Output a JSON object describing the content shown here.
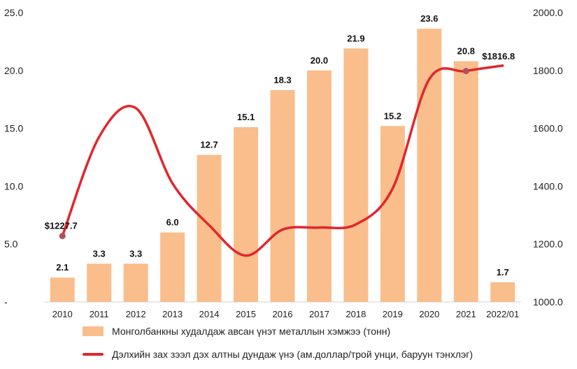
{
  "colors": {
    "bar": "#F9BE8B",
    "line": "#E1262D",
    "marker": "#B0505A"
  },
  "chart_data": {
    "type": "bar",
    "categories": [
      "2010",
      "2011",
      "2012",
      "2013",
      "2014",
      "2015",
      "2016",
      "2017",
      "2018",
      "2019",
      "2020",
      "2021",
      "2022/01"
    ],
    "series": [
      {
        "name": "Монголбанкны худалдаж авсан үнэт металлын хэмжээ (тонн)",
        "type": "bar",
        "axis": "left",
        "values": [
          2.1,
          3.3,
          3.3,
          6.0,
          12.7,
          15.1,
          18.3,
          20.0,
          21.9,
          15.2,
          23.6,
          20.8,
          1.7
        ],
        "labels": [
          "2.1",
          "3.3",
          "3.3",
          "6.0",
          "12.7",
          "15.1",
          "18.3",
          "20.0",
          "21.9",
          "15.2",
          "23.6",
          "20.8",
          "1.7"
        ]
      },
      {
        "name": "Дэлхийн зах зээл дэх алтны дундаж үнэ (ам.доллар/трой унци, баруун тэнхлэг)",
        "type": "line",
        "smooth": true,
        "axis": "right",
        "values": [
          1227.7,
          1570,
          1670,
          1410,
          1265,
          1160,
          1250,
          1257,
          1268,
          1392,
          1770,
          1798,
          1816.8
        ],
        "point_labels": [
          {
            "index": 0,
            "text": "$1227.7"
          },
          {
            "index": 12,
            "text": "$1816.8"
          }
        ],
        "markers_at": [
          0,
          11
        ]
      }
    ],
    "y_left": {
      "ylim": [
        0,
        25
      ],
      "ticks": [
        "-",
        "5.0",
        "10.0",
        "15.0",
        "20.0",
        "25.0"
      ]
    },
    "y_right": {
      "ylim": [
        1000,
        2000
      ],
      "ticks": [
        "1000.0",
        "1200.0",
        "1400.0",
        "1600.0",
        "1800.0",
        "2000.0"
      ]
    },
    "grid": false,
    "legend_position": "bottom"
  }
}
